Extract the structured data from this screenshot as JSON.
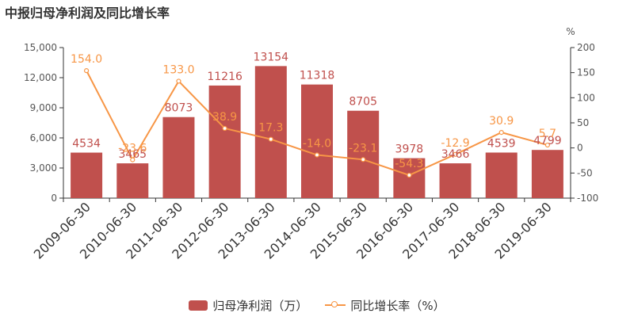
{
  "chart_data": {
    "type": "bar",
    "title": "中报归母净利润及同比增长率",
    "right_axis_unit": "%",
    "categories": [
      "2009-06-30",
      "2010-06-30",
      "2011-06-30",
      "2012-06-30",
      "2013-06-30",
      "2014-06-30",
      "2015-06-30",
      "2016-06-30",
      "2017-06-30",
      "2018-06-30",
      "2019-06-30"
    ],
    "series": [
      {
        "name": "归母净利润（万）",
        "type": "bar",
        "axis": "left",
        "values": [
          4534,
          3465,
          8073,
          11216,
          13154,
          11318,
          8705,
          3978,
          3466,
          4539,
          4799
        ],
        "labels": [
          "4534",
          "3465",
          "8073",
          "11216",
          "13154",
          "11318",
          "8705",
          "3978",
          "3466",
          "4539",
          "4799"
        ]
      },
      {
        "name": "同比增长率（%）",
        "type": "line",
        "axis": "right",
        "values": [
          154.0,
          -23.6,
          133.0,
          38.9,
          17.3,
          -14.0,
          -23.1,
          -54.3,
          -12.9,
          30.9,
          5.7
        ],
        "labels": [
          "154.0",
          "-23.6",
          "133.0",
          "38.9",
          "17.3",
          "-14.0",
          "-23.1",
          "-54.3",
          "-12.9",
          "30.9",
          "5.7"
        ]
      }
    ],
    "left_axis": {
      "ylim": [
        0,
        15000
      ],
      "ticks": [
        "0",
        "3,000",
        "6,000",
        "9,000",
        "12,000",
        "15,000"
      ]
    },
    "right_axis": {
      "ylim": [
        -100,
        200
      ],
      "ticks": [
        "-100",
        "-50",
        "0",
        "50",
        "100",
        "150",
        "200"
      ]
    },
    "legend": "bottom-center",
    "grid": false,
    "colors": {
      "bar": "#c0504d",
      "line": "#f79646",
      "bar_label": "#c0504d",
      "line_label": "#f79646"
    }
  }
}
